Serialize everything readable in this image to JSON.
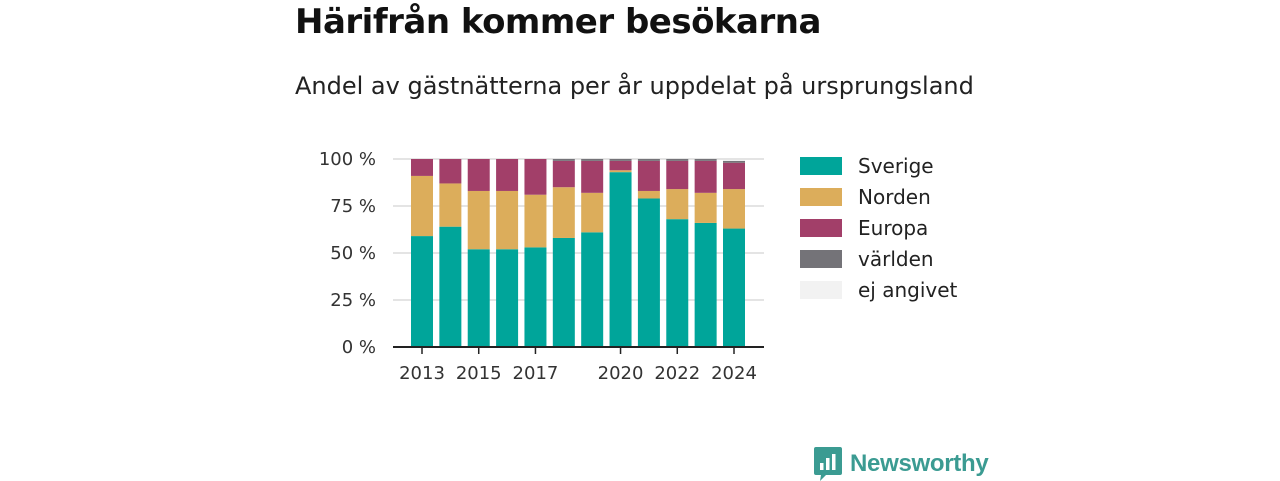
{
  "header": {
    "title": "Härifrån kommer besökarna",
    "subtitle": "Andel av gästnätterna per år uppdelat på ursprungsland"
  },
  "brand": {
    "name": "Newsworthy",
    "color": "#3b9b92",
    "icon": "newsworthy-logo-icon"
  },
  "chart_data": {
    "type": "bar",
    "stacked": true,
    "categories": [
      "2013",
      "2014",
      "2015",
      "2016",
      "2017",
      "2018",
      "2019",
      "2020",
      "2021",
      "2022",
      "2023",
      "2024"
    ],
    "x_tick_labels": [
      "2013",
      "2015",
      "2017",
      "2020",
      "2022",
      "2024"
    ],
    "y_tick_labels": [
      "0 %",
      "25 %",
      "50 %",
      "75 %",
      "100 %"
    ],
    "y_ticks": [
      0,
      25,
      50,
      75,
      100
    ],
    "ylim": [
      0,
      100
    ],
    "grid": true,
    "legend_position": "right",
    "series": [
      {
        "name": "Sverige",
        "color": "#00a59a",
        "values": [
          59,
          64,
          52,
          52,
          53,
          58,
          61,
          93,
          79,
          68,
          66,
          63
        ]
      },
      {
        "name": "Norden",
        "color": "#dcad5b",
        "values": [
          32,
          23,
          31,
          31,
          28,
          27,
          21,
          1,
          4,
          16,
          16,
          21
        ]
      },
      {
        "name": "Europa",
        "color": "#a23f69",
        "values": [
          9,
          13,
          17,
          17,
          19,
          14,
          17,
          5,
          16,
          15,
          17,
          14
        ]
      },
      {
        "name": "världen",
        "color": "#747378",
        "values": [
          0,
          0,
          0,
          0,
          0,
          1,
          1,
          1,
          1,
          1,
          1,
          1
        ]
      },
      {
        "name": "ej angivet",
        "color": "#f2f2f2",
        "values": [
          0,
          0,
          0,
          0,
          0,
          0,
          0,
          0,
          0,
          0,
          0,
          0
        ]
      }
    ]
  }
}
